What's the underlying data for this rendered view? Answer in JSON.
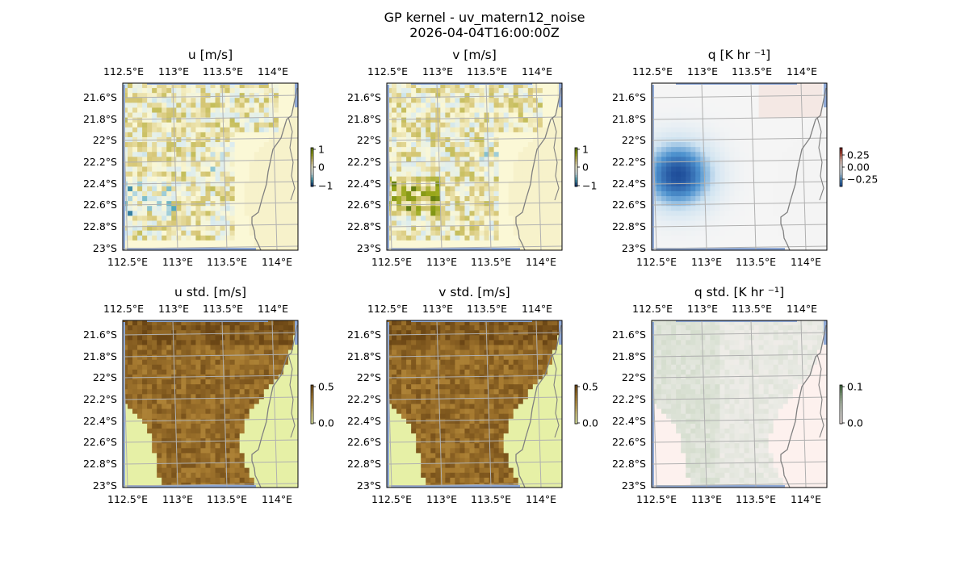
{
  "figure": {
    "title_line1": "GP kernel - uv_matern12_noise",
    "title_line2": "2026-04-04T16:00:00Z"
  },
  "chart_data": [
    {
      "type": "heatmap",
      "name": "panel-u",
      "title": "u [m/s]",
      "x_ticks": [
        "112.5°E",
        "113°E",
        "113.5°E",
        "114°E"
      ],
      "y_ticks": [
        "21.6°S",
        "21.8°S",
        "22°S",
        "22.2°S",
        "22.4°S",
        "22.6°S",
        "22.8°S",
        "23°S"
      ],
      "colorbar": {
        "ticks": [
          "1",
          "0",
          "−1"
        ],
        "range": [
          -1,
          1
        ],
        "colormap": "diverging-blue-yellow-green"
      },
      "pattern": "signed"
    },
    {
      "type": "heatmap",
      "name": "panel-v",
      "title": "v [m/s]",
      "x_ticks": [
        "112.5°E",
        "113°E",
        "113.5°E",
        "114°E"
      ],
      "y_ticks": [
        "21.6°S",
        "21.8°S",
        "22°S",
        "22.2°S",
        "22.4°S",
        "22.6°S",
        "22.8°S",
        "23°S"
      ],
      "colorbar": {
        "ticks": [
          "1",
          "0",
          "−1"
        ],
        "range": [
          -1,
          1
        ],
        "colormap": "diverging-blue-yellow-green"
      },
      "pattern": "signed"
    },
    {
      "type": "heatmap",
      "name": "panel-q",
      "title": "q [K hr ⁻¹]",
      "x_ticks": [
        "112.5°E",
        "113°E",
        "113.5°E",
        "114°E"
      ],
      "y_ticks": [
        "21.6°S",
        "21.8°S",
        "22°S",
        "22.2°S",
        "22.4°S",
        "22.6°S",
        "22.8°S",
        "23°S"
      ],
      "colorbar": {
        "ticks": [
          "0.25",
          "0.00",
          "−0.25"
        ],
        "range": [
          -0.35,
          0.35
        ],
        "colormap": "diverging-blue-red"
      },
      "pattern": "q"
    },
    {
      "type": "heatmap",
      "name": "panel-u-std",
      "title": "u std. [m/s]",
      "x_ticks": [
        "112.5°E",
        "113°E",
        "113.5°E",
        "114°E"
      ],
      "y_ticks": [
        "21.6°S",
        "21.8°S",
        "22°S",
        "22.2°S",
        "22.4°S",
        "22.6°S",
        "22.8°S",
        "23°S"
      ],
      "colorbar": {
        "ticks": [
          "0.5",
          "0.0"
        ],
        "range": [
          0,
          0.5
        ],
        "colormap": "sequential-brown"
      },
      "pattern": "std"
    },
    {
      "type": "heatmap",
      "name": "panel-v-std",
      "title": "v std. [m/s]",
      "x_ticks": [
        "112.5°E",
        "113°E",
        "113.5°E",
        "114°E"
      ],
      "y_ticks": [
        "21.6°S",
        "21.8°S",
        "22°S",
        "22.2°S",
        "22.4°S",
        "22.6°S",
        "22.8°S",
        "23°S"
      ],
      "colorbar": {
        "ticks": [
          "0.5",
          "0.0"
        ],
        "range": [
          0,
          0.5
        ],
        "colormap": "sequential-brown"
      },
      "pattern": "std"
    },
    {
      "type": "heatmap",
      "name": "panel-q-std",
      "title": "q std. [K hr ⁻¹]",
      "x_ticks": [
        "112.5°E",
        "113°E",
        "113.5°E",
        "114°E"
      ],
      "y_ticks": [
        "21.6°S",
        "21.8°S",
        "22°S",
        "22.2°S",
        "22.4°S",
        "22.6°S",
        "22.8°S",
        "23°S"
      ],
      "colorbar": {
        "ticks": [
          "0.1",
          "0.0"
        ],
        "range": [
          0,
          0.1
        ],
        "colormap": "sequential-green-pink"
      },
      "pattern": "qstd"
    }
  ]
}
